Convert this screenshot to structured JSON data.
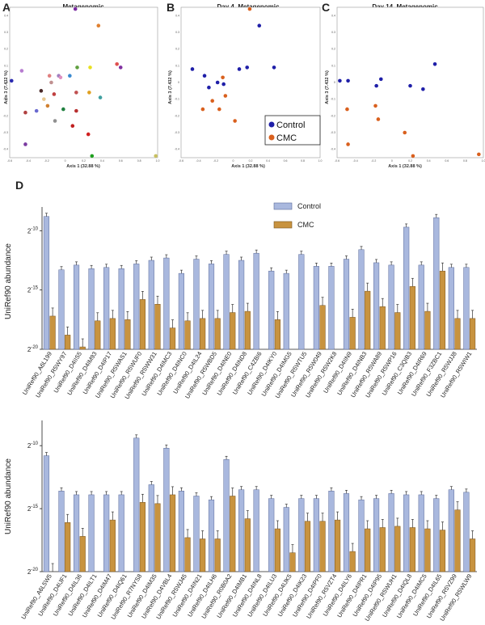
{
  "colors": {
    "control_bar": "#a9b8de",
    "control_edge": "#5a6a9a",
    "cmc_bar": "#c8933f",
    "cmc_edge": "#7a5520",
    "control_dot": "#1f1fa8",
    "cmc_dot": "#d9601e"
  },
  "legend": {
    "control": "Control",
    "cmc": "CMC"
  },
  "chart_data": [
    {
      "type": "scatter",
      "letter": "A",
      "title": "Metagenomic",
      "xlabel": "Axis 1 (32.88 %)",
      "ylabel": "Axis 3 (7.432 %)",
      "xlim": [
        -0.6,
        1.0
      ],
      "ylim": [
        -0.4,
        0.5
      ],
      "xticks": [
        "-0.6",
        "-0.4",
        "-0.2",
        "0",
        "0.2",
        "0.4",
        "0.6",
        "0.8",
        "1.0"
      ],
      "yticks": [
        "0.4",
        "0.3",
        "0.2",
        "0.1",
        "0",
        "-0.1",
        "-0.2",
        "-0.3",
        "-0.4"
      ],
      "points": [
        {
          "x": -0.58,
          "y": 0.06,
          "c": "#2a2ab0"
        },
        {
          "x": -0.47,
          "y": 0.12,
          "c": "#b77cd0"
        },
        {
          "x": -0.43,
          "y": -0.13,
          "c": "#b04040"
        },
        {
          "x": -0.43,
          "y": -0.32,
          "c": "#7a3aa0"
        },
        {
          "x": -0.31,
          "y": -0.12,
          "c": "#6a6ad0"
        },
        {
          "x": -0.26,
          "y": 0.0,
          "c": "#4a2a2a"
        },
        {
          "x": -0.23,
          "y": -0.05,
          "c": "#e8c890"
        },
        {
          "x": -0.19,
          "y": -0.09,
          "c": "#d08030"
        },
        {
          "x": -0.17,
          "y": 0.09,
          "c": "#e08080"
        },
        {
          "x": -0.15,
          "y": 0.05,
          "c": "#c09090"
        },
        {
          "x": -0.12,
          "y": -0.02,
          "c": "#c04040"
        },
        {
          "x": -0.11,
          "y": -0.18,
          "c": "#909090"
        },
        {
          "x": -0.07,
          "y": 0.09,
          "c": "#a080c0"
        },
        {
          "x": -0.05,
          "y": 0.08,
          "c": "#e090c0"
        },
        {
          "x": -0.02,
          "y": -0.11,
          "c": "#208040"
        },
        {
          "x": 0.05,
          "y": 0.09,
          "c": "#3a8ad0"
        },
        {
          "x": 0.08,
          "y": -0.21,
          "c": "#c02020"
        },
        {
          "x": 0.11,
          "y": 0.49,
          "c": "#7a2aa0"
        },
        {
          "x": 0.12,
          "y": -0.01,
          "c": "#c05050"
        },
        {
          "x": 0.12,
          "y": -0.12,
          "c": "#b83030"
        },
        {
          "x": 0.13,
          "y": 0.14,
          "c": "#60a040"
        },
        {
          "x": 0.25,
          "y": -0.26,
          "c": "#d02020"
        },
        {
          "x": 0.26,
          "y": -0.01,
          "c": "#e0a020"
        },
        {
          "x": 0.27,
          "y": 0.14,
          "c": "#e8e020"
        },
        {
          "x": 0.29,
          "y": -0.39,
          "c": "#20a020"
        },
        {
          "x": 0.36,
          "y": 0.39,
          "c": "#e08030"
        },
        {
          "x": 0.38,
          "y": -0.04,
          "c": "#40a0a0"
        },
        {
          "x": 0.56,
          "y": 0.16,
          "c": "#e05050"
        },
        {
          "x": 0.6,
          "y": 0.14,
          "c": "#8030a0"
        },
        {
          "x": 0.98,
          "y": -0.39,
          "c": "#c8c060"
        }
      ]
    },
    {
      "type": "scatter",
      "letter": "B",
      "title": "Day 4, Metagenomic",
      "xlabel": "Axis 1 (32.88 %)",
      "ylabel": "Axis 3 (7.432 %)",
      "xlim": [
        -0.6,
        1.0
      ],
      "ylim": [
        -0.4,
        0.5
      ],
      "xticks": [
        "-0.6",
        "-0.4",
        "-0.2",
        "0",
        "0.2",
        "0.4",
        "0.6",
        "0.8",
        "1.0"
      ],
      "yticks": [
        "0.4",
        "0.3",
        "0.2",
        "0.1",
        "0",
        "-0.1",
        "-0.2",
        "-0.3",
        "-0.4"
      ],
      "points": [
        {
          "x": -0.47,
          "y": 0.13,
          "g": "control"
        },
        {
          "x": -0.33,
          "y": 0.09,
          "g": "control"
        },
        {
          "x": -0.28,
          "y": 0.02,
          "g": "control"
        },
        {
          "x": -0.18,
          "y": 0.05,
          "g": "control"
        },
        {
          "x": -0.11,
          "y": 0.04,
          "g": "control"
        },
        {
          "x": 0.07,
          "y": 0.13,
          "g": "control"
        },
        {
          "x": 0.16,
          "y": 0.14,
          "g": "control"
        },
        {
          "x": 0.3,
          "y": 0.39,
          "g": "control"
        },
        {
          "x": 0.47,
          "y": 0.14,
          "g": "control"
        },
        {
          "x": -0.35,
          "y": -0.11,
          "g": "cmc"
        },
        {
          "x": -0.24,
          "y": -0.06,
          "g": "cmc"
        },
        {
          "x": -0.16,
          "y": -0.11,
          "g": "cmc"
        },
        {
          "x": -0.12,
          "y": 0.08,
          "g": "cmc"
        },
        {
          "x": -0.09,
          "y": -0.03,
          "g": "cmc"
        },
        {
          "x": 0.02,
          "y": -0.18,
          "g": "cmc"
        },
        {
          "x": 0.19,
          "y": 0.49,
          "g": "cmc"
        }
      ]
    },
    {
      "type": "scatter",
      "letter": "C",
      "title": "Day 14, Metagenomic",
      "xlabel": "Axis 1 (32.88 %)",
      "ylabel": "Axis 3 (7.432 %)",
      "xlim": [
        -0.6,
        1.0
      ],
      "ylim": [
        -0.4,
        0.5
      ],
      "xticks": [
        "-0.6",
        "-0.4",
        "-0.2",
        "0",
        "0.2",
        "0.4",
        "0.6",
        "0.8",
        "1.0"
      ],
      "yticks": [
        "0.4",
        "0.3",
        "0.2",
        "0.1",
        "0",
        "-0.1",
        "-0.2",
        "-0.3",
        "-0.4"
      ],
      "points": [
        {
          "x": -0.57,
          "y": 0.06,
          "g": "control"
        },
        {
          "x": -0.48,
          "y": 0.06,
          "g": "control"
        },
        {
          "x": -0.17,
          "y": 0.03,
          "g": "control"
        },
        {
          "x": -0.12,
          "y": 0.07,
          "g": "control"
        },
        {
          "x": 0.2,
          "y": 0.03,
          "g": "control"
        },
        {
          "x": 0.34,
          "y": 0.01,
          "g": "control"
        },
        {
          "x": 0.47,
          "y": 0.16,
          "g": "control"
        },
        {
          "x": -0.49,
          "y": -0.11,
          "g": "cmc"
        },
        {
          "x": -0.48,
          "y": -0.32,
          "g": "cmc"
        },
        {
          "x": -0.18,
          "y": -0.09,
          "g": "cmc"
        },
        {
          "x": -0.15,
          "y": -0.17,
          "g": "cmc"
        },
        {
          "x": 0.14,
          "y": -0.25,
          "g": "cmc"
        },
        {
          "x": 0.23,
          "y": -0.39,
          "g": "cmc"
        },
        {
          "x": 0.95,
          "y": -0.38,
          "g": "cmc"
        }
      ]
    },
    {
      "type": "bar",
      "letter": "D",
      "ylabel": "UniRef90 abundance",
      "ylim": [
        -20,
        -8
      ],
      "ytick_base": "2",
      "yticks": [
        -10,
        -15,
        -20
      ],
      "categories": [
        "UniRef90_A6L199",
        "UniRef90_R5WY97",
        "UniRef90_D4IIS5",
        "UniRef90_D4IM93",
        "UniRef90_D4IP17",
        "UniRef90_R5WAS1",
        "UniRef90_R5WUF0",
        "UniRef90_R5WW31",
        "UniRef90_D4IMC3",
        "UniRef90_D4INC0",
        "UniRef90_D4IL24",
        "UniRef90_R5WBD5",
        "UniRef90_D4INE0",
        "UniRef90_D4IND8",
        "UniRef90_C4ZBI6",
        "UniRef90_D4IKY0",
        "UniRef90_D4IMG5",
        "UniRef90_R5WTU5",
        "UniRef90_R5W049",
        "UniRef90_R5W2K8",
        "UniRef90_D4IIN9",
        "UniRef90_D4INB3",
        "UniRef90_R5WA89",
        "UniRef90_R5WP16",
        "UniRef90_C3QIB3",
        "UniRef90_D4IR69",
        "UniRef90_F3ZBC1",
        "UniRef90_R5WJJ8",
        "UniRef90_R5WIW1"
      ],
      "series": [
        {
          "name": "Control",
          "values": [
            -8.8,
            -13.3,
            -12.9,
            -13.2,
            -13.1,
            -13.2,
            -12.8,
            -12.5,
            -12.3,
            -13.6,
            -12.4,
            -12.8,
            -12.0,
            -12.5,
            -11.9,
            -13.4,
            -13.6,
            -12.0,
            -13.0,
            -13.0,
            -12.4,
            -11.6,
            -12.7,
            -12.9,
            -9.7,
            -12.9,
            -8.9,
            -13.1,
            -13.1
          ]
        },
        {
          "name": "CMC",
          "values": [
            -17.2,
            -18.8,
            -19.8,
            -17.6,
            -17.4,
            -17.5,
            -15.8,
            -16.2,
            -18.2,
            -17.6,
            -17.4,
            -17.4,
            -16.9,
            -16.8,
            null,
            -17.5,
            null,
            null,
            -16.3,
            null,
            -17.3,
            -15.1,
            -16.4,
            -16.9,
            -14.7,
            -16.8,
            -13.4,
            -17.4,
            -17.4
          ]
        }
      ]
    },
    {
      "type": "bar",
      "ylabel": "UniRef90 abundance",
      "ylim": [
        -20,
        -8
      ],
      "ytick_base": "2",
      "yticks": [
        -10,
        -15,
        -20
      ],
      "categories": [
        "UniRef90_A6L5W5",
        "UniRef90_D4IJF1",
        "UniRef90_D4IL36",
        "UniRef90_D4ILT1",
        "UniRef90_D4IM47",
        "UniRef90_D4IQ61",
        "UniRef90_R7NYS8",
        "UniRef90_D4IM35",
        "UniRef90_D4VBL4",
        "UniRef90_R5WJ45",
        "UniRef90_D4IN21",
        "UniRef90_D4ILH6",
        "UniRef90_R0B0A2",
        "UniRef90_D4IMB1",
        "UniRef90_D4INL8",
        "UniRef90_D4ILU3",
        "UniRef90_D4IJK5",
        "UniRef90_D4IK23",
        "UniRef90_D4IPF0",
        "UniRef90_R5VZT4",
        "UniRef90_D4ILY6",
        "UniRef90_D4IPR1",
        "UniRef90_D4IP95",
        "UniRef90_R5WUH1",
        "UniRef90_D4IQL8",
        "UniRef90_D4IMC5",
        "UniRef90_D4IL65",
        "UniRef90_R5VZ99",
        "UniRef90_R5WLW9"
      ],
      "series": [
        {
          "name": "Control",
          "values": [
            -10.8,
            -13.6,
            -13.9,
            -13.9,
            -13.9,
            -13.9,
            -9.4,
            -13.1,
            -10.2,
            -13.6,
            -14.0,
            -14.3,
            -11.1,
            -13.5,
            -13.5,
            -14.2,
            -14.9,
            -14.2,
            -14.2,
            -13.6,
            -13.8,
            -14.3,
            -14.2,
            -13.8,
            -13.9,
            -13.9,
            -14.2,
            -13.5,
            -13.7
          ]
        },
        {
          "name": "CMC",
          "values": [
            -20.0,
            -16.1,
            -17.2,
            null,
            -15.9,
            null,
            -14.5,
            -14.6,
            -13.9,
            -17.3,
            -17.4,
            -17.4,
            -14.0,
            -15.8,
            null,
            -16.6,
            -18.5,
            -16.0,
            -16.0,
            -15.9,
            -18.4,
            -16.6,
            -16.5,
            -16.4,
            -16.5,
            -16.6,
            -16.7,
            -15.1,
            -17.4
          ]
        }
      ]
    }
  ]
}
